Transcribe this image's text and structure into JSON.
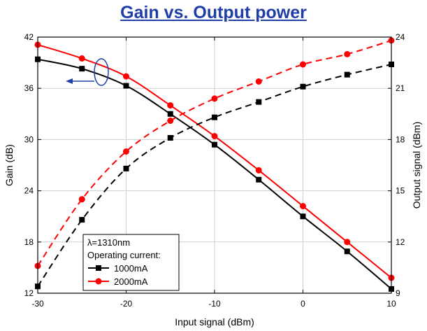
{
  "chart_data": {
    "type": "line",
    "title": "Gain vs. Output power",
    "xlabel": "Input signal (dBm)",
    "ylabel_left": "Gain (dB)",
    "ylabel_right": "Output signal (dBm)",
    "xlim": [
      -30,
      10
    ],
    "ylim_left": [
      12,
      42
    ],
    "ylim_right": [
      9,
      24
    ],
    "x_ticks": [
      -30,
      -20,
      -10,
      0,
      10
    ],
    "y_ticks_left": [
      12,
      18,
      24,
      30,
      36,
      42
    ],
    "y_ticks_right": [
      9,
      12,
      15,
      18,
      21,
      24
    ],
    "x": [
      -30,
      -25,
      -20,
      -15,
      -10,
      -5,
      0,
      5,
      10
    ],
    "series": [
      {
        "name": "1000mA",
        "axis": "left",
        "kind": "gain",
        "color": "#000000",
        "marker": "square",
        "line": "solid",
        "values": [
          39.4,
          38.3,
          36.3,
          33.0,
          29.4,
          25.3,
          21.0,
          16.9,
          12.5
        ]
      },
      {
        "name": "2000mA",
        "axis": "left",
        "kind": "gain",
        "color": "#ff0000",
        "marker": "circle",
        "line": "solid",
        "values": [
          41.1,
          39.5,
          37.4,
          34.0,
          30.4,
          26.4,
          22.2,
          18.0,
          13.8
        ]
      },
      {
        "name": "1000mA",
        "axis": "right",
        "kind": "output",
        "color": "#000000",
        "marker": "square",
        "line": "dashed",
        "values": [
          9.4,
          13.3,
          16.3,
          18.1,
          19.3,
          20.2,
          21.1,
          21.8,
          22.4
        ]
      },
      {
        "name": "2000mA",
        "axis": "right",
        "kind": "output",
        "color": "#ff0000",
        "marker": "circle",
        "line": "dashed",
        "values": [
          10.6,
          14.5,
          17.3,
          19.1,
          20.4,
          21.4,
          22.4,
          23.0,
          23.8
        ]
      }
    ],
    "legend": {
      "placement": "bottom-left",
      "header": "λ=1310nm",
      "subheader": "Operating current:",
      "entries": [
        "1000mA",
        "2000mA"
      ]
    },
    "annotation": {
      "type": "ellipse-with-arrow",
      "text": "",
      "points_to": "left axis",
      "color": "#1f3ea8"
    }
  }
}
